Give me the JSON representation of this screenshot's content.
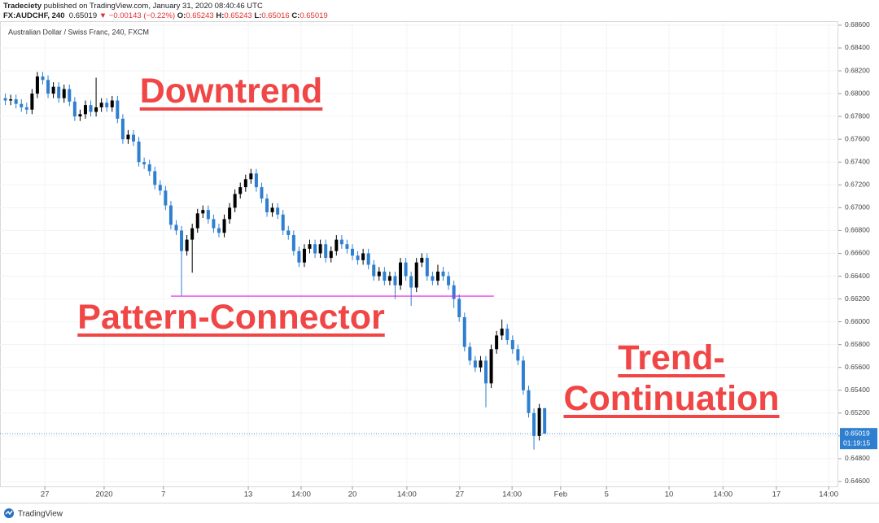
{
  "header": {
    "author": "Tradeciety",
    "published": "published on TradingView.com, January 31, 2020 08:40:46 UTC",
    "symbol": "FX:AUDCHF, 240",
    "price": "0.65019",
    "change": "▼ −0.00143 (−0.22%)",
    "ohlc": [
      {
        "label": "O:",
        "value": "0.65243"
      },
      {
        "label": "H:",
        "value": "0.65243"
      },
      {
        "label": "L:",
        "value": "0.65016"
      },
      {
        "label": "C:",
        "value": "0.65019"
      }
    ]
  },
  "footer": {
    "brand": "TradingView"
  },
  "chart_data": {
    "type": "candlestick",
    "title": "Australian Dollar / Swiss Franc, 240, FXCM",
    "up_color": "#000000",
    "down_color": "#2f7fd0",
    "grid": true,
    "annotations": [
      "Downtrend",
      "Pattern-Connector",
      "Trend-",
      "Continuation"
    ],
    "level_line": {
      "value": 0.66225,
      "x": [
        31,
        91.5
      ],
      "color": "#e01ee0"
    },
    "last_price": {
      "value": 0.65019,
      "label": "0.65019"
    },
    "countdown": "01:19:15",
    "xlim": [
      -1,
      156
    ],
    "xticks": [
      {
        "value": 7.4,
        "label": "27"
      },
      {
        "value": 18.5,
        "label": "2020"
      },
      {
        "value": 29.6,
        "label": "7"
      },
      {
        "value": 45.5,
        "label": "13"
      },
      {
        "value": 55.4,
        "label": "14:00"
      },
      {
        "value": 65,
        "label": "20"
      },
      {
        "value": 75.2,
        "label": "14:00"
      },
      {
        "value": 85.1,
        "label": "27"
      },
      {
        "value": 94.9,
        "label": "14:00"
      },
      {
        "value": 104,
        "label": "Feb"
      },
      {
        "value": 112.6,
        "label": "5"
      },
      {
        "value": 124.3,
        "label": "10"
      },
      {
        "value": 134.4,
        "label": "14:00"
      },
      {
        "value": 144.4,
        "label": "17"
      },
      {
        "value": 154.2,
        "label": "14:00"
      }
    ],
    "ylim": [
      0.64557,
      0.68621
    ],
    "yticks": [
      {
        "value": 0.646,
        "label": "0.64600"
      },
      {
        "value": 0.648,
        "label": "0.64800"
      },
      {
        "value": 0.65,
        "label": "0.65000"
      },
      {
        "value": 0.652,
        "label": "0.65200"
      },
      {
        "value": 0.654,
        "label": "0.65400"
      },
      {
        "value": 0.656,
        "label": "0.65600"
      },
      {
        "value": 0.658,
        "label": "0.65800"
      },
      {
        "value": 0.66,
        "label": "0.66000"
      },
      {
        "value": 0.662,
        "label": "0.66200"
      },
      {
        "value": 0.664,
        "label": "0.66400"
      },
      {
        "value": 0.666,
        "label": "0.66600"
      },
      {
        "value": 0.668,
        "label": "0.66800"
      },
      {
        "value": 0.67,
        "label": "0.67000"
      },
      {
        "value": 0.672,
        "label": "0.67200"
      },
      {
        "value": 0.674,
        "label": "0.67400"
      },
      {
        "value": 0.676,
        "label": "0.67600"
      },
      {
        "value": 0.678,
        "label": "0.67800"
      },
      {
        "value": 0.68,
        "label": "0.68000"
      },
      {
        "value": 0.682,
        "label": "0.68200"
      },
      {
        "value": 0.684,
        "label": "0.68400"
      },
      {
        "value": 0.686,
        "label": "0.68600"
      }
    ],
    "open": [
      0.6796,
      0.6794,
      0.6795,
      0.6791,
      0.6788,
      0.6786,
      0.68,
      0.6815,
      0.6812,
      0.68,
      0.6806,
      0.6796,
      0.6804,
      0.6793,
      0.678,
      0.6782,
      0.679,
      0.6784,
      0.6788,
      0.6792,
      0.6788,
      0.6794,
      0.6778,
      0.676,
      0.6764,
      0.6758,
      0.674,
      0.6738,
      0.6732,
      0.672,
      0.6715,
      0.6702,
      0.6685,
      0.668,
      0.6662,
      0.6672,
      0.6682,
      0.6695,
      0.6698,
      0.669,
      0.6682,
      0.6678,
      0.669,
      0.67,
      0.6712,
      0.6718,
      0.6725,
      0.673,
      0.6718,
      0.6708,
      0.6696,
      0.67,
      0.6694,
      0.668,
      0.6676,
      0.6662,
      0.6652,
      0.6664,
      0.6668,
      0.666,
      0.6668,
      0.6656,
      0.6662,
      0.6672,
      0.6668,
      0.6664,
      0.6658,
      0.6654,
      0.666,
      0.665,
      0.664,
      0.6644,
      0.6636,
      0.664,
      0.6632,
      0.6652,
      0.664,
      0.663,
      0.6652,
      0.6656,
      0.664,
      0.6636,
      0.6644,
      0.664,
      0.6632,
      0.662,
      0.6604,
      0.6578,
      0.6566,
      0.656,
      0.6566,
      0.6546,
      0.6576,
      0.6588,
      0.6594,
      0.6584,
      0.6576,
      0.6566,
      0.654,
      0.652,
      0.65,
      0.65243
    ],
    "high": [
      0.68,
      0.6799,
      0.6799,
      0.6795,
      0.6792,
      0.6804,
      0.6819,
      0.6819,
      0.6816,
      0.681,
      0.681,
      0.6808,
      0.6808,
      0.6797,
      0.6786,
      0.6794,
      0.6794,
      0.6814,
      0.6796,
      0.6796,
      0.6798,
      0.6798,
      0.6782,
      0.6768,
      0.6768,
      0.6762,
      0.6744,
      0.6742,
      0.6736,
      0.6724,
      0.6719,
      0.6706,
      0.6689,
      0.6684,
      0.6676,
      0.6686,
      0.6699,
      0.6702,
      0.6702,
      0.6694,
      0.6686,
      0.6694,
      0.6704,
      0.6716,
      0.6722,
      0.6729,
      0.6734,
      0.6734,
      0.6722,
      0.6712,
      0.6704,
      0.6704,
      0.6698,
      0.6684,
      0.668,
      0.6666,
      0.6668,
      0.6672,
      0.6672,
      0.6672,
      0.6672,
      0.6666,
      0.6676,
      0.6676,
      0.6672,
      0.6668,
      0.6662,
      0.6664,
      0.6664,
      0.6654,
      0.6648,
      0.6648,
      0.6644,
      0.6644,
      0.6656,
      0.6656,
      0.6644,
      0.6656,
      0.666,
      0.666,
      0.6644,
      0.665,
      0.6648,
      0.6644,
      0.6636,
      0.6624,
      0.6608,
      0.6582,
      0.657,
      0.657,
      0.657,
      0.658,
      0.6592,
      0.6602,
      0.6598,
      0.6588,
      0.658,
      0.657,
      0.6544,
      0.6524,
      0.6528,
      0.65243
    ],
    "low": [
      0.679,
      0.679,
      0.6787,
      0.6784,
      0.6782,
      0.6782,
      0.6796,
      0.6808,
      0.6796,
      0.6796,
      0.6792,
      0.6792,
      0.6789,
      0.6776,
      0.6776,
      0.6778,
      0.678,
      0.678,
      0.6784,
      0.6784,
      0.6784,
      0.6774,
      0.6756,
      0.6756,
      0.6754,
      0.6736,
      0.6734,
      0.6728,
      0.6716,
      0.6711,
      0.6698,
      0.6681,
      0.6676,
      0.6623,
      0.6658,
      0.6643,
      0.6678,
      0.6691,
      0.6686,
      0.6678,
      0.6674,
      0.6674,
      0.6686,
      0.6696,
      0.6708,
      0.6714,
      0.6721,
      0.6714,
      0.6704,
      0.6692,
      0.6692,
      0.669,
      0.6676,
      0.6672,
      0.6658,
      0.6648,
      0.6648,
      0.666,
      0.6656,
      0.6656,
      0.6652,
      0.6652,
      0.6658,
      0.6664,
      0.666,
      0.6654,
      0.665,
      0.665,
      0.6646,
      0.6636,
      0.6636,
      0.6632,
      0.6632,
      0.662,
      0.6628,
      0.6636,
      0.6614,
      0.6626,
      0.6648,
      0.6636,
      0.6632,
      0.6632,
      0.6636,
      0.6628,
      0.6612,
      0.66,
      0.6574,
      0.6562,
      0.6556,
      0.6556,
      0.6525,
      0.6542,
      0.6572,
      0.6584,
      0.658,
      0.6572,
      0.6562,
      0.6536,
      0.6516,
      0.6488,
      0.6496,
      0.65016
    ],
    "close": [
      0.6794,
      0.6795,
      0.6791,
      0.6788,
      0.6786,
      0.68,
      0.6815,
      0.6812,
      0.68,
      0.6806,
      0.6796,
      0.6804,
      0.6793,
      0.678,
      0.6782,
      0.679,
      0.6784,
      0.6788,
      0.6792,
      0.6788,
      0.6794,
      0.6778,
      0.676,
      0.6764,
      0.6758,
      0.674,
      0.6738,
      0.6732,
      0.672,
      0.6715,
      0.6702,
      0.6685,
      0.668,
      0.6662,
      0.6672,
      0.6682,
      0.6695,
      0.6698,
      0.669,
      0.6682,
      0.6678,
      0.669,
      0.67,
      0.6712,
      0.6718,
      0.6725,
      0.673,
      0.6718,
      0.6708,
      0.6696,
      0.67,
      0.6694,
      0.668,
      0.6676,
      0.6662,
      0.6652,
      0.6664,
      0.6668,
      0.666,
      0.6668,
      0.6656,
      0.6662,
      0.6672,
      0.6668,
      0.6664,
      0.6658,
      0.6654,
      0.666,
      0.665,
      0.664,
      0.6644,
      0.6636,
      0.664,
      0.6632,
      0.6652,
      0.664,
      0.663,
      0.6652,
      0.6656,
      0.664,
      0.6636,
      0.6644,
      0.664,
      0.6632,
      0.662,
      0.6604,
      0.6578,
      0.6566,
      0.656,
      0.6566,
      0.6546,
      0.6576,
      0.6588,
      0.6594,
      0.6584,
      0.6576,
      0.6566,
      0.654,
      0.652,
      0.65,
      0.65243,
      0.65019
    ]
  }
}
